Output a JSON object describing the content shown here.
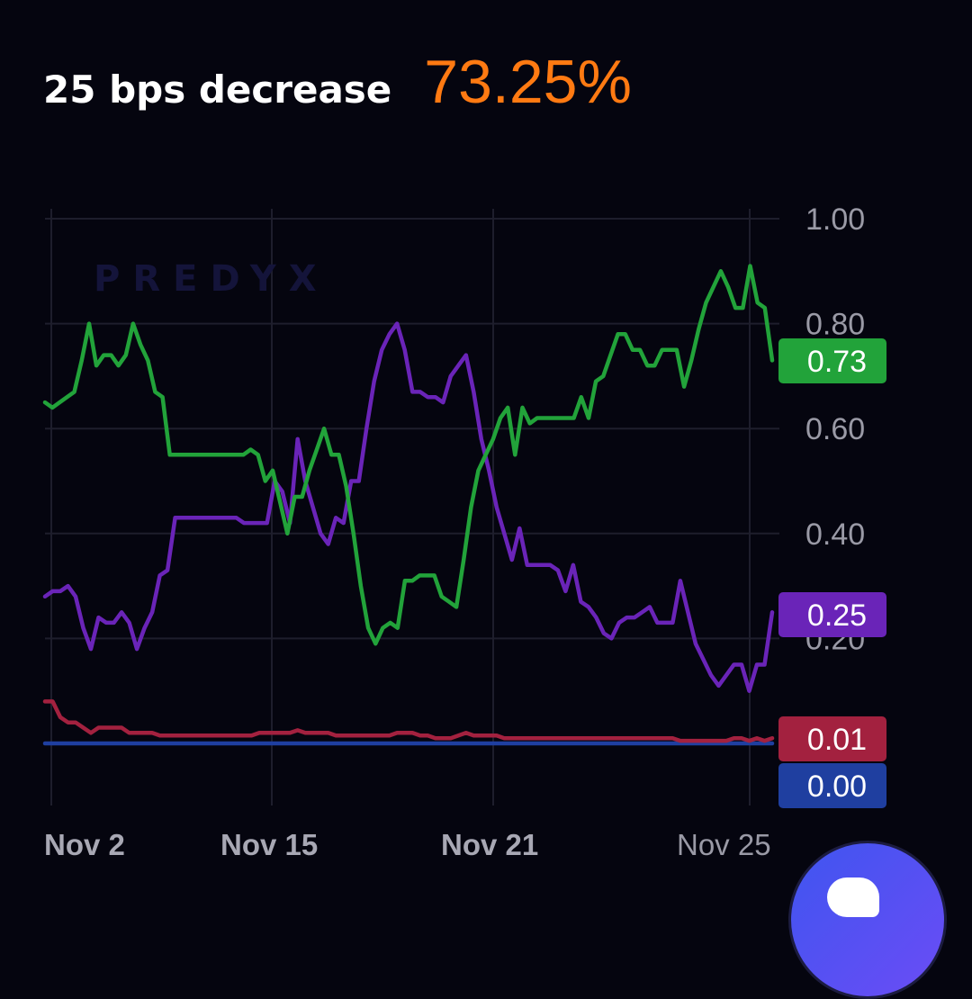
{
  "header": {
    "outcome_label": "25 bps decrease",
    "probability_text": "73.25%"
  },
  "watermark": "PREDYX",
  "colors": {
    "background": "#05050f",
    "grid": "#1e1e2c",
    "tick_text": "#9a9aa6",
    "accent_orange": "#ff7a12"
  },
  "chart_data": {
    "type": "line",
    "x_ticks": [
      "Nov 2",
      "Nov 15",
      "Nov 21",
      "Nov 25"
    ],
    "y_ticks": [
      "1.00",
      "0.80",
      "0.60",
      "0.40",
      "0.20"
    ],
    "ylim": [
      0,
      1.05
    ],
    "grid": true,
    "series": [
      {
        "color": "#22a33a",
        "end_label": "0.73",
        "values": [
          0.65,
          0.64,
          0.65,
          0.66,
          0.67,
          0.73,
          0.8,
          0.72,
          0.74,
          0.74,
          0.72,
          0.74,
          0.8,
          0.76,
          0.73,
          0.67,
          0.66,
          0.55,
          0.55,
          0.55,
          0.55,
          0.55,
          0.55,
          0.55,
          0.55,
          0.55,
          0.55,
          0.55,
          0.56,
          0.55,
          0.5,
          0.52,
          0.46,
          0.4,
          0.47,
          0.47,
          0.52,
          0.56,
          0.6,
          0.55,
          0.55,
          0.49,
          0.4,
          0.3,
          0.22,
          0.19,
          0.22,
          0.23,
          0.22,
          0.31,
          0.31,
          0.32,
          0.32,
          0.32,
          0.28,
          0.27,
          0.26,
          0.35,
          0.45,
          0.52,
          0.55,
          0.58,
          0.62,
          0.64,
          0.55,
          0.64,
          0.61,
          0.62,
          0.62,
          0.62,
          0.62,
          0.62,
          0.62,
          0.66,
          0.62,
          0.69,
          0.7,
          0.74,
          0.78,
          0.78,
          0.75,
          0.75,
          0.72,
          0.72,
          0.75,
          0.75,
          0.75,
          0.68,
          0.73,
          0.79,
          0.84,
          0.87,
          0.9,
          0.87,
          0.83,
          0.83,
          0.91,
          0.84,
          0.83,
          0.73
        ]
      },
      {
        "color": "#6a24b8",
        "end_label": "0.25",
        "values": [
          0.28,
          0.29,
          0.29,
          0.3,
          0.28,
          0.22,
          0.18,
          0.24,
          0.23,
          0.23,
          0.25,
          0.23,
          0.18,
          0.22,
          0.25,
          0.32,
          0.33,
          0.43,
          0.43,
          0.43,
          0.43,
          0.43,
          0.43,
          0.43,
          0.43,
          0.43,
          0.42,
          0.42,
          0.42,
          0.42,
          0.5,
          0.48,
          0.42,
          0.58,
          0.5,
          0.45,
          0.4,
          0.38,
          0.43,
          0.42,
          0.5,
          0.5,
          0.6,
          0.69,
          0.75,
          0.78,
          0.8,
          0.75,
          0.67,
          0.67,
          0.66,
          0.66,
          0.65,
          0.7,
          0.72,
          0.74,
          0.67,
          0.58,
          0.52,
          0.45,
          0.4,
          0.35,
          0.41,
          0.34,
          0.34,
          0.34,
          0.34,
          0.33,
          0.29,
          0.34,
          0.27,
          0.26,
          0.24,
          0.21,
          0.2,
          0.23,
          0.24,
          0.24,
          0.25,
          0.26,
          0.23,
          0.23,
          0.23,
          0.31,
          0.25,
          0.19,
          0.16,
          0.13,
          0.11,
          0.13,
          0.15,
          0.15,
          0.1,
          0.15,
          0.15,
          0.25
        ]
      },
      {
        "color": "#a3213f",
        "end_label": "0.01",
        "values": [
          0.08,
          0.08,
          0.05,
          0.04,
          0.04,
          0.03,
          0.02,
          0.03,
          0.03,
          0.03,
          0.03,
          0.02,
          0.02,
          0.02,
          0.02,
          0.015,
          0.015,
          0.015,
          0.015,
          0.015,
          0.015,
          0.015,
          0.015,
          0.015,
          0.015,
          0.015,
          0.015,
          0.015,
          0.02,
          0.02,
          0.02,
          0.02,
          0.02,
          0.025,
          0.02,
          0.02,
          0.02,
          0.02,
          0.015,
          0.015,
          0.015,
          0.015,
          0.015,
          0.015,
          0.015,
          0.015,
          0.02,
          0.02,
          0.02,
          0.015,
          0.015,
          0.01,
          0.01,
          0.01,
          0.015,
          0.02,
          0.015,
          0.015,
          0.015,
          0.015,
          0.01,
          0.01,
          0.01,
          0.01,
          0.01,
          0.01,
          0.01,
          0.01,
          0.01,
          0.01,
          0.01,
          0.01,
          0.01,
          0.01,
          0.01,
          0.01,
          0.01,
          0.01,
          0.01,
          0.01,
          0.01,
          0.01,
          0.01,
          0.005,
          0.005,
          0.005,
          0.005,
          0.005,
          0.005,
          0.005,
          0.01,
          0.01,
          0.005,
          0.01,
          0.005,
          0.01
        ]
      },
      {
        "color": "#1f3fa0",
        "end_label": "0.00",
        "values": [
          0.0,
          0.0,
          0.0,
          0.0,
          0.0,
          0.0,
          0.0,
          0.0,
          0.0,
          0.0,
          0.0,
          0.0,
          0.0,
          0.0,
          0.0,
          0.0,
          0.0,
          0.0,
          0.0,
          0.0,
          0.0,
          0.0,
          0.0,
          0.0,
          0.0,
          0.0,
          0.0,
          0.0,
          0.0,
          0.0,
          0.0,
          0.0,
          0.0,
          0.0,
          0.0,
          0.0,
          0.0,
          0.0,
          0.0,
          0.0,
          0.0,
          0.0,
          0.0,
          0.0,
          0.0,
          0.0,
          0.0,
          0.0,
          0.0,
          0.0,
          0.0,
          0.0,
          0.0,
          0.0,
          0.0,
          0.0,
          0.0,
          0.0,
          0.0,
          0.0,
          0.0,
          0.0,
          0.0,
          0.0,
          0.0,
          0.0,
          0.0,
          0.0,
          0.0,
          0.0,
          0.0,
          0.0,
          0.0,
          0.0,
          0.0,
          0.0,
          0.0,
          0.0,
          0.0,
          0.0,
          0.0,
          0.0,
          0.0,
          0.0,
          0.0,
          0.0,
          0.0,
          0.0,
          0.0,
          0.0,
          0.0,
          0.0,
          0.0,
          0.0,
          0.0,
          0.0
        ]
      }
    ]
  }
}
